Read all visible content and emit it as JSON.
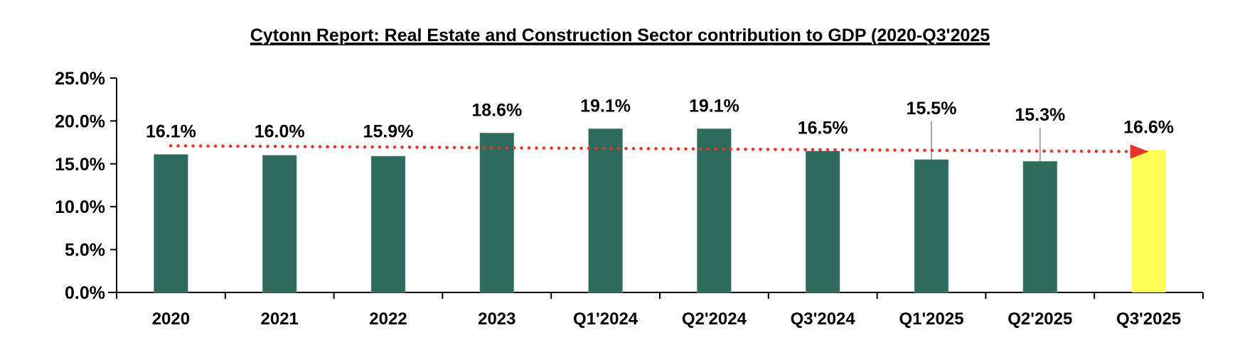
{
  "chart_data": {
    "type": "bar",
    "title": "Cytonn Report: Real Estate and Construction Sector contribution to GDP (2020-Q3'2025",
    "xlabel": "",
    "ylabel": "",
    "ylim": [
      0,
      25
    ],
    "yticks": [
      0,
      5,
      10,
      15,
      20,
      25
    ],
    "ytick_labels": [
      "0.0%",
      "5.0%",
      "10.0%",
      "15.0%",
      "20.0%",
      "25.0%"
    ],
    "grid": false,
    "legend": "none",
    "categories": [
      "2020",
      "2021",
      "2022",
      "2023",
      "Q1'2024",
      "Q2'2024",
      "Q3'2024",
      "Q1'2025",
      "Q2'2025",
      "Q3'2025"
    ],
    "values": [
      16.1,
      16.0,
      15.9,
      18.6,
      19.1,
      19.1,
      16.5,
      15.5,
      15.3,
      16.6
    ],
    "data_labels": [
      "16.1%",
      "16.0%",
      "15.9%",
      "18.6%",
      "19.1%",
      "19.1%",
      "16.5%",
      "15.5%",
      "15.3%",
      "16.6%"
    ],
    "highlight_index": 9,
    "trend_arrow": {
      "from_value": 17.1,
      "to_value": 16.6,
      "style": "dotted",
      "color": "#E8352B"
    },
    "colors": {
      "bar": "#2E6A5E",
      "highlight": "#FFFF55",
      "trend": "#E8352B",
      "leader": "#A6A6A6",
      "axis": "#000000"
    }
  }
}
